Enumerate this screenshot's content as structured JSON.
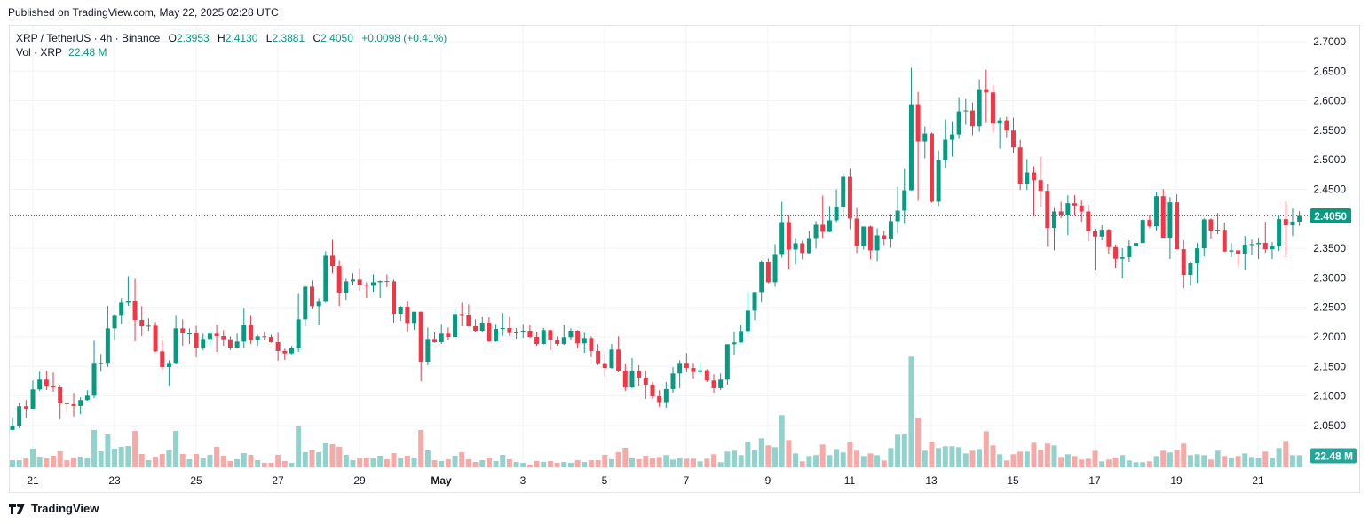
{
  "published": "Published on TradingView.com, May 22, 2025 02:28 UTC",
  "legend": {
    "symbol": "XRP / TetherUS · 4h · Binance",
    "open_label": "O",
    "open": "2.3953",
    "high_label": "H",
    "high": "2.4130",
    "low_label": "L",
    "low": "2.3881",
    "close_label": "C",
    "close": "2.4050",
    "change": "+0.0098 (+0.41%)",
    "vol_label": "Vol · XRP",
    "vol_value": "22.48 M"
  },
  "footer": {
    "brand": "TradingView",
    "icon": "tradingview-logo-icon"
  },
  "colors": {
    "up": "#089981",
    "down": "#f23645",
    "vol_up": "#92d2cc",
    "vol_down": "#f7a9a7",
    "grid": "#f0f3fa",
    "price_label_bg": "#089981",
    "vol_label_bg": "#26a69a"
  },
  "chart_data": {
    "type": "candlestick",
    "interval": "4h",
    "symbol": "XRP / TetherUS",
    "exchange": "Binance",
    "grid": true,
    "y_axis": {
      "position": "right",
      "ylim": [
        2.04,
        2.71
      ],
      "ticks": [
        "2.7000",
        "2.6500",
        "2.6000",
        "2.5500",
        "2.5000",
        "2.4500",
        "2.3500",
        "2.3000",
        "2.2500",
        "2.2000",
        "2.1500",
        "2.1000",
        "2.0500"
      ]
    },
    "x_axis": {
      "ticks": [
        "21",
        "23",
        "25",
        "27",
        "29",
        "May",
        "3",
        "5",
        "7",
        "9",
        "11",
        "13",
        "15",
        "17",
        "19",
        "21"
      ],
      "first_candle": "Apr 20 12:00",
      "last_candle": "May 22 00:00"
    },
    "last_price_label": "2.4050",
    "last_volume_label": "22.48 M",
    "ohlc_columns": [
      "open",
      "high",
      "low",
      "close"
    ],
    "ohlc": [
      [
        2.0425,
        2.0635,
        2.042,
        2.0495
      ],
      [
        2.0495,
        2.0885,
        2.0455,
        2.0825
      ],
      [
        2.0825,
        2.093,
        2.062,
        2.0785
      ],
      [
        2.0785,
        2.126,
        2.0785,
        2.111
      ],
      [
        2.111,
        2.141,
        2.1085,
        2.1275
      ],
      [
        2.1275,
        2.1425,
        2.11,
        2.1175
      ],
      [
        2.1175,
        2.1395,
        2.107,
        2.1145
      ],
      [
        2.1145,
        2.1185,
        2.0605,
        2.0875
      ],
      [
        2.0875,
        2.0875,
        2.0725,
        2.086
      ],
      [
        2.086,
        2.105,
        2.065,
        2.083
      ],
      [
        2.083,
        2.0975,
        2.069,
        2.093
      ],
      [
        2.093,
        2.1095,
        2.092,
        2.1005
      ],
      [
        2.1005,
        2.1935,
        2.0965,
        2.156
      ],
      [
        2.156,
        2.171,
        2.141,
        2.156
      ],
      [
        2.156,
        2.2525,
        2.149,
        2.2145
      ],
      [
        2.2145,
        2.2385,
        2.1955,
        2.237
      ],
      [
        2.237,
        2.2655,
        2.2225,
        2.258
      ],
      [
        2.258,
        2.303,
        2.2525,
        2.261
      ],
      [
        2.261,
        2.2985,
        2.1925,
        2.2285
      ],
      [
        2.2285,
        2.252,
        2.2015,
        2.218
      ],
      [
        2.218,
        2.231,
        2.2105,
        2.219
      ],
      [
        2.219,
        2.225,
        2.174,
        2.1755
      ],
      [
        2.1755,
        2.1955,
        2.1445,
        2.149
      ],
      [
        2.149,
        2.1605,
        2.1175,
        2.156
      ],
      [
        2.156,
        2.237,
        2.1535,
        2.2145
      ],
      [
        2.2145,
        2.2295,
        2.185,
        2.206
      ],
      [
        2.206,
        2.2145,
        2.188,
        2.206
      ],
      [
        2.206,
        2.219,
        2.1655,
        2.182
      ],
      [
        2.182,
        2.2055,
        2.1775,
        2.1965
      ],
      [
        2.1965,
        2.2115,
        2.1865,
        2.2055
      ],
      [
        2.2055,
        2.2205,
        2.1745,
        2.2015
      ],
      [
        2.2015,
        2.2115,
        2.185,
        2.196
      ],
      [
        2.196,
        2.201,
        2.1775,
        2.182
      ],
      [
        2.182,
        2.2055,
        2.181,
        2.192
      ],
      [
        2.192,
        2.249,
        2.182,
        2.2205
      ],
      [
        2.2205,
        2.237,
        2.188,
        2.194
      ],
      [
        2.194,
        2.204,
        2.185,
        2.201
      ],
      [
        2.201,
        2.2085,
        2.194,
        2.2
      ],
      [
        2.2,
        2.204,
        2.19,
        2.191
      ],
      [
        2.191,
        2.207,
        2.1595,
        2.176
      ],
      [
        2.176,
        2.18,
        2.161,
        2.172
      ],
      [
        2.172,
        2.1845,
        2.1705,
        2.1805
      ],
      [
        2.1805,
        2.273,
        2.1745,
        2.2295
      ],
      [
        2.2295,
        2.2865,
        2.218,
        2.285
      ],
      [
        2.285,
        2.2955,
        2.248,
        2.252
      ],
      [
        2.252,
        2.2655,
        2.2195,
        2.2595
      ],
      [
        2.2595,
        2.345,
        2.258,
        2.3375
      ],
      [
        2.3375,
        2.3645,
        2.3075,
        2.32
      ],
      [
        2.32,
        2.33,
        2.2525,
        2.275
      ],
      [
        2.275,
        2.2985,
        2.263,
        2.294
      ],
      [
        2.294,
        2.3075,
        2.287,
        2.297
      ],
      [
        2.297,
        2.3165,
        2.278,
        2.2885
      ],
      [
        2.2885,
        2.2925,
        2.266,
        2.2865
      ],
      [
        2.2865,
        2.306,
        2.2765,
        2.2925
      ],
      [
        2.2925,
        2.2955,
        2.266,
        2.2945
      ],
      [
        2.2945,
        2.306,
        2.284,
        2.294
      ],
      [
        2.294,
        2.297,
        2.224,
        2.239
      ],
      [
        2.239,
        2.2525,
        2.227,
        2.251
      ],
      [
        2.251,
        2.26,
        2.209,
        2.2235
      ],
      [
        2.2235,
        2.2425,
        2.212,
        2.2425
      ],
      [
        2.2425,
        2.2425,
        2.125,
        2.158
      ],
      [
        2.158,
        2.216,
        2.152,
        2.1965
      ],
      [
        2.1965,
        2.2075,
        2.19,
        2.191
      ],
      [
        2.191,
        2.222,
        2.188,
        2.2055
      ],
      [
        2.2055,
        2.216,
        2.1955,
        2.2
      ],
      [
        2.2,
        2.2475,
        2.199,
        2.2385
      ],
      [
        2.2385,
        2.258,
        2.218,
        2.2375
      ],
      [
        2.2375,
        2.255,
        2.217,
        2.218
      ],
      [
        2.218,
        2.2295,
        2.209,
        2.2105
      ],
      [
        2.2105,
        2.2345,
        2.209,
        2.224
      ],
      [
        2.224,
        2.233,
        2.1915,
        2.1925
      ],
      [
        2.1925,
        2.222,
        2.1915,
        2.2135
      ],
      [
        2.2135,
        2.2405,
        2.202,
        2.215
      ],
      [
        2.215,
        2.2345,
        2.2015,
        2.2065
      ],
      [
        2.2065,
        2.215,
        2.197,
        2.2075
      ],
      [
        2.2075,
        2.222,
        2.1985,
        2.2105
      ],
      [
        2.2105,
        2.2205,
        2.1985,
        2.2
      ],
      [
        2.2,
        2.2085,
        2.185,
        2.188
      ],
      [
        2.188,
        2.215,
        2.187,
        2.2115
      ],
      [
        2.2115,
        2.2115,
        2.1775,
        2.1945
      ],
      [
        2.1945,
        2.201,
        2.185,
        2.188
      ],
      [
        2.188,
        2.2205,
        2.1865,
        2.1995
      ],
      [
        2.1995,
        2.2145,
        2.194,
        2.2105
      ],
      [
        2.2105,
        2.2115,
        2.1805,
        2.189
      ],
      [
        2.189,
        2.207,
        2.173,
        2.198
      ],
      [
        2.198,
        2.201,
        2.1655,
        2.176
      ],
      [
        2.176,
        2.1875,
        2.152,
        2.1555
      ],
      [
        2.1555,
        2.1715,
        2.1325,
        2.1475
      ],
      [
        2.1475,
        2.188,
        2.146,
        2.1785
      ],
      [
        2.1785,
        2.201,
        2.14,
        2.143
      ],
      [
        2.143,
        2.155,
        2.1085,
        2.1145
      ],
      [
        2.1145,
        2.164,
        2.113,
        2.1425
      ],
      [
        2.1425,
        2.152,
        2.1175,
        2.131
      ],
      [
        2.131,
        2.143,
        2.095,
        2.119
      ],
      [
        2.119,
        2.1235,
        2.095,
        2.0995
      ],
      [
        2.0995,
        2.1095,
        2.0815,
        2.0895
      ],
      [
        2.0895,
        2.1235,
        2.08,
        2.1115
      ],
      [
        2.1115,
        2.149,
        2.1055,
        2.138
      ],
      [
        2.138,
        2.1605,
        2.113,
        2.156
      ],
      [
        2.156,
        2.1725,
        2.14,
        2.1475
      ],
      [
        2.1475,
        2.156,
        2.1295,
        2.1405
      ],
      [
        2.1405,
        2.153,
        2.137,
        2.1435
      ],
      [
        2.1435,
        2.1455,
        2.1235,
        2.126
      ],
      [
        2.126,
        2.1365,
        2.1055,
        2.113
      ],
      [
        2.113,
        2.138,
        2.11,
        2.1275
      ],
      [
        2.1275,
        2.1875,
        2.119,
        2.1875
      ],
      [
        2.1875,
        2.2085,
        2.17,
        2.1905
      ],
      [
        2.1905,
        2.2205,
        2.19,
        2.21
      ],
      [
        2.21,
        2.276,
        2.2045,
        2.2445
      ],
      [
        2.2445,
        2.2765,
        2.2285,
        2.276
      ],
      [
        2.276,
        2.33,
        2.2585,
        2.327
      ],
      [
        2.327,
        2.333,
        2.291,
        2.2925
      ],
      [
        2.2925,
        2.357,
        2.285,
        2.339
      ],
      [
        2.339,
        2.429,
        2.3345,
        2.3945
      ],
      [
        2.3945,
        2.4065,
        2.3155,
        2.348
      ],
      [
        2.348,
        2.3675,
        2.3225,
        2.3585
      ],
      [
        2.3585,
        2.363,
        2.3315,
        2.342
      ],
      [
        2.342,
        2.3795,
        2.341,
        2.3675
      ],
      [
        2.3675,
        2.396,
        2.3495,
        2.39
      ],
      [
        2.39,
        2.4395,
        2.3675,
        2.378
      ],
      [
        2.378,
        2.4215,
        2.377,
        2.3975
      ],
      [
        2.3975,
        2.45,
        2.3945,
        2.42
      ],
      [
        2.42,
        2.477,
        2.4035,
        2.471
      ],
      [
        2.471,
        2.4845,
        2.3825,
        2.4005
      ],
      [
        2.4005,
        2.4185,
        2.342,
        2.354
      ],
      [
        2.354,
        2.387,
        2.348,
        2.387
      ],
      [
        2.387,
        2.3885,
        2.3315,
        2.3465
      ],
      [
        2.3465,
        2.384,
        2.3285,
        2.372
      ],
      [
        2.372,
        2.3795,
        2.3555,
        2.366
      ],
      [
        2.366,
        2.408,
        2.351,
        2.396
      ],
      [
        2.396,
        2.4545,
        2.375,
        2.414
      ],
      [
        2.414,
        2.4845,
        2.3915,
        2.4485
      ],
      [
        2.4485,
        2.6555,
        2.448,
        2.594
      ],
      [
        2.594,
        2.615,
        2.4305,
        2.531
      ],
      [
        2.531,
        2.5565,
        2.5025,
        2.5445
      ],
      [
        2.5445,
        2.546,
        2.4275,
        2.429
      ],
      [
        2.429,
        2.516,
        2.4215,
        2.4995
      ],
      [
        2.4995,
        2.5685,
        2.486,
        2.534
      ],
      [
        2.534,
        2.564,
        2.5055,
        2.543
      ],
      [
        2.543,
        2.606,
        2.5355,
        2.582
      ],
      [
        2.582,
        2.603,
        2.5595,
        2.5835
      ],
      [
        2.5835,
        2.597,
        2.5415,
        2.557
      ],
      [
        2.557,
        2.636,
        2.5475,
        2.6195
      ],
      [
        2.6195,
        2.6525,
        2.5625,
        2.614
      ],
      [
        2.614,
        2.627,
        2.546,
        2.5615
      ],
      [
        2.5615,
        2.5715,
        2.519,
        2.567
      ],
      [
        2.567,
        2.573,
        2.537,
        2.5495
      ],
      [
        2.5495,
        2.5715,
        2.5115,
        2.521
      ],
      [
        2.521,
        2.534,
        2.449,
        2.4595
      ],
      [
        2.4595,
        2.501,
        2.449,
        2.4785
      ],
      [
        2.4785,
        2.489,
        2.404,
        2.4655
      ],
      [
        2.4655,
        2.5055,
        2.4205,
        2.4475
      ],
      [
        2.4475,
        2.459,
        2.3525,
        2.3845
      ],
      [
        2.3845,
        2.4185,
        2.3465,
        2.4125
      ],
      [
        2.4125,
        2.429,
        2.401,
        2.407
      ],
      [
        2.407,
        2.44,
        2.3725,
        2.4265
      ],
      [
        2.4265,
        2.44,
        2.405,
        2.4225
      ],
      [
        2.4225,
        2.431,
        2.395,
        2.4125
      ],
      [
        2.4125,
        2.4235,
        2.362,
        2.379
      ],
      [
        2.379,
        2.383,
        2.3125,
        2.37
      ],
      [
        2.37,
        2.389,
        2.3635,
        2.3815
      ],
      [
        2.3815,
        2.383,
        2.341,
        2.352
      ],
      [
        2.352,
        2.356,
        2.317,
        2.3325
      ],
      [
        2.3325,
        2.35,
        2.299,
        2.335
      ],
      [
        2.335,
        2.3635,
        2.3275,
        2.353
      ],
      [
        2.353,
        2.3635,
        2.35,
        2.359
      ],
      [
        2.359,
        2.3995,
        2.358,
        2.398
      ],
      [
        2.398,
        2.407,
        2.3845,
        2.3875
      ],
      [
        2.3875,
        2.446,
        2.38,
        2.4385
      ],
      [
        2.4385,
        2.4505,
        2.368,
        2.368
      ],
      [
        2.368,
        2.437,
        2.332,
        2.428
      ],
      [
        2.428,
        2.4415,
        2.3485,
        2.3485
      ],
      [
        2.3485,
        2.3635,
        2.2825,
        2.305
      ],
      [
        2.305,
        2.3275,
        2.287,
        2.3245
      ],
      [
        2.3245,
        2.359,
        2.2915,
        2.35
      ],
      [
        2.35,
        2.401,
        2.3365,
        2.399
      ],
      [
        2.399,
        2.401,
        2.3665,
        2.38
      ],
      [
        2.38,
        2.41,
        2.374,
        2.3815
      ],
      [
        2.3815,
        2.3935,
        2.344,
        2.3445
      ],
      [
        2.3445,
        2.359,
        2.335,
        2.3465
      ],
      [
        2.3465,
        2.3465,
        2.32,
        2.341
      ],
      [
        2.341,
        2.371,
        2.314,
        2.356
      ],
      [
        2.356,
        2.365,
        2.338,
        2.357
      ],
      [
        2.357,
        2.368,
        2.332,
        2.359
      ],
      [
        2.359,
        2.395,
        2.3425,
        2.3485
      ],
      [
        2.3485,
        2.3605,
        2.332,
        2.353
      ],
      [
        2.353,
        2.407,
        2.3455,
        2.3995
      ],
      [
        2.3995,
        2.4295,
        2.335,
        2.389
      ],
      [
        2.389,
        2.4175,
        2.371,
        2.3953
      ],
      [
        2.3953,
        2.413,
        2.3881,
        2.405
      ]
    ],
    "volume_unit": "M",
    "volume": [
      13.1,
      13.1,
      16.4,
      34.4,
      19.7,
      16.4,
      21.3,
      29.5,
      13.1,
      18.0,
      19.7,
      18.0,
      68.9,
      29.5,
      60.7,
      34.4,
      37.7,
      39.4,
      67.2,
      24.6,
      13.1,
      19.7,
      24.6,
      32.8,
      67.2,
      24.6,
      14.8,
      24.6,
      16.4,
      23.0,
      37.7,
      21.3,
      11.5,
      14.8,
      26.2,
      23.0,
      13.1,
      8.2,
      8.2,
      23.0,
      11.5,
      8.2,
      75.4,
      27.9,
      31.2,
      27.9,
      44.3,
      42.6,
      37.7,
      23.0,
      13.1,
      16.4,
      18.0,
      16.4,
      21.3,
      14.8,
      26.2,
      16.4,
      21.3,
      18.0,
      68.9,
      31.2,
      13.1,
      11.5,
      14.8,
      21.3,
      27.9,
      14.8,
      9.8,
      13.1,
      18.0,
      11.5,
      23.0,
      14.8,
      9.8,
      8.2,
      4.9,
      11.5,
      9.8,
      11.5,
      8.2,
      9.8,
      8.2,
      13.1,
      9.8,
      13.1,
      13.1,
      23.0,
      14.8,
      27.9,
      36.1,
      16.4,
      14.8,
      21.3,
      17.5,
      19.2,
      22.5,
      14.3,
      17.5,
      15.9,
      15.9,
      11.0,
      15.9,
      24.1,
      9.3,
      29.0,
      30.7,
      22.5,
      47.1,
      32.3,
      53.6,
      40.5,
      37.2,
      96.3,
      50.3,
      25.7,
      11.0,
      20.8,
      22.5,
      42.1,
      22.5,
      33.9,
      27.4,
      47.1,
      30.7,
      20.8,
      25.7,
      22.5,
      12.6,
      35.6,
      60.2,
      61.8,
      204.5,
      91.3,
      30.7,
      47.1,
      35.6,
      38.9,
      38.9,
      37.2,
      25.7,
      30.7,
      33.9,
      66.7,
      40.5,
      24.1,
      12.6,
      24.1,
      29.0,
      29.0,
      45.4,
      32.3,
      43.8,
      40.5,
      19.2,
      24.1,
      20.8,
      14.3,
      15.9,
      30.7,
      11.0,
      14.3,
      17.5,
      22.5,
      12.6,
      9.3,
      9.3,
      11.0,
      20.8,
      30.7,
      27.4,
      32.3,
      43.8,
      22.5,
      24.1,
      22.5,
      14.3,
      30.7,
      20.8,
      17.5,
      20.8,
      25.7,
      19.2,
      17.5,
      29.0,
      17.5,
      35.6,
      48.7,
      22.5,
      22.48
    ]
  }
}
